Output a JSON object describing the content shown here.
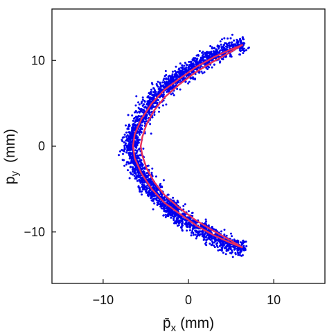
{
  "chart_data": {
    "type": "scatter",
    "xlabel": "p̄x (mm)",
    "xlabel_main": "p̄",
    "xlabel_sub": "x",
    "xlabel_unit": "(mm)",
    "ylabel": "py (mm)",
    "ylabel_main": "p",
    "ylabel_sub": "y",
    "ylabel_unit": "(mm)",
    "xlim": [
      -16,
      16
    ],
    "ylim": [
      -16,
      16
    ],
    "xticks": [
      -10,
      0,
      10
    ],
    "yticks": [
      -10,
      0,
      10
    ],
    "xtick_labels": [
      "−10",
      "0",
      "10"
    ],
    "ytick_labels": [
      "−10",
      "0",
      "10"
    ],
    "grid": false,
    "series": [
      {
        "kind": "scatter",
        "color": "#0000ee",
        "description": "dense band of points along a left-opening C-shaped arc, spine path given by spine_x/spine_y, spread about 1 mm",
        "spine_x": [
          6.5,
          5.0,
          3.0,
          1.0,
          -1.0,
          -2.5,
          -4.0,
          -5.2,
          -6.2,
          -6.8,
          -7.0,
          -6.8,
          -6.2,
          -5.2,
          -4.0,
          -2.5,
          -1.0,
          1.0,
          3.0,
          5.0,
          6.5
        ],
        "spine_y": [
          12.0,
          11.5,
          10.6,
          9.5,
          8.2,
          7.0,
          5.5,
          3.8,
          2.0,
          0.5,
          0.0,
          -0.5,
          -2.0,
          -3.8,
          -5.5,
          -7.0,
          -8.2,
          -9.5,
          -10.6,
          -11.5,
          -12.0
        ],
        "spread": 0.9,
        "point_count": 2600
      },
      {
        "kind": "line",
        "color": "#e8305a",
        "description": "closed thin ellipse-like contour hugging the arc",
        "outer_x": [
          6.3,
          5.0,
          3.0,
          1.0,
          -1.0,
          -2.8,
          -4.3,
          -5.5,
          -6.3,
          -6.5,
          -6.3,
          -5.5,
          -4.3,
          -2.8,
          -1.0,
          1.0,
          3.0,
          5.0,
          6.3
        ],
        "outer_y": [
          11.8,
          11.3,
          10.4,
          9.3,
          7.9,
          6.6,
          5.0,
          3.2,
          1.4,
          0.0,
          -1.4,
          -3.2,
          -5.0,
          -6.6,
          -7.9,
          -9.3,
          -10.4,
          -11.3,
          -11.8
        ],
        "inner_x": [
          6.3,
          4.8,
          2.8,
          0.8,
          -1.2,
          -2.8,
          -4.0,
          -4.9,
          -5.4,
          -5.6,
          -5.4,
          -4.9,
          -4.0,
          -2.8,
          -1.2,
          0.8,
          2.8,
          4.8,
          6.3
        ],
        "inner_y": [
          11.8,
          10.9,
          9.8,
          8.6,
          7.1,
          5.7,
          4.2,
          2.6,
          1.1,
          0.0,
          -1.1,
          -2.6,
          -4.2,
          -5.7,
          -7.1,
          -8.6,
          -9.8,
          -10.9,
          -11.8
        ]
      }
    ]
  }
}
